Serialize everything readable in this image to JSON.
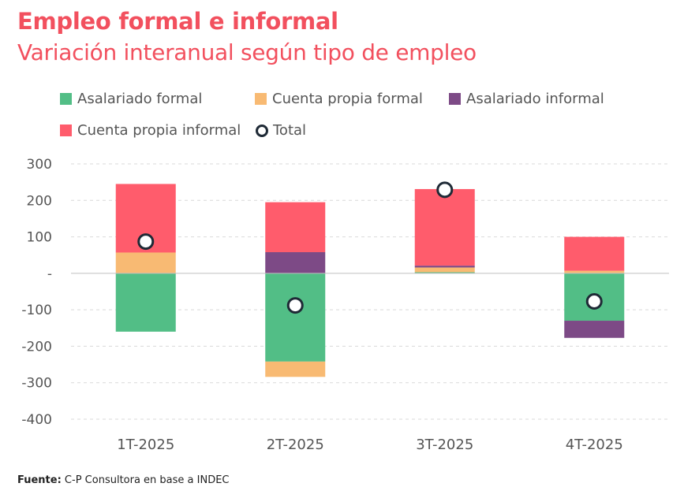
{
  "header": {
    "title": "Empleo formal e informal",
    "subtitle": "Variación interanual según tipo de empleo"
  },
  "legend": [
    {
      "label": "Asalariado formal",
      "color": "#52BE86",
      "kind": "square"
    },
    {
      "label": "Cuenta propia formal",
      "color": "#F8BA73",
      "kind": "square"
    },
    {
      "label": "Asalariado informal",
      "color": "#7D4A86",
      "kind": "square"
    },
    {
      "label": "Cuenta propia informal",
      "color": "#FF5C6C",
      "kind": "square"
    },
    {
      "label": "Total",
      "color": "#1f2a36",
      "kind": "dot"
    }
  ],
  "chart_data": {
    "type": "bar",
    "stacked": true,
    "categories": [
      "1T-2025",
      "2T-2025",
      "3T-2025",
      "4T-2025"
    ],
    "series": [
      {
        "name": "Asalariado formal",
        "color": "#52BE86",
        "values": [
          -160,
          -242,
          3,
          -130
        ]
      },
      {
        "name": "Cuenta propia formal",
        "color": "#F8BA73",
        "values": [
          57,
          -42,
          13,
          7
        ]
      },
      {
        "name": "Asalariado informal",
        "color": "#7D4A86",
        "values": [
          0,
          58,
          5,
          -47
        ]
      },
      {
        "name": "Cuenta propia informal",
        "color": "#FF5C6C",
        "values": [
          188,
          137,
          210,
          93
        ]
      }
    ],
    "total": {
      "name": "Total",
      "values": [
        87,
        -88,
        229,
        -77
      ]
    },
    "ylim": [
      -400,
      300
    ],
    "yticks": [
      300,
      200,
      100,
      0,
      -100,
      -200,
      -300,
      -400
    ],
    "ytick_labels": [
      "300",
      "200",
      "100",
      "-",
      "-100",
      "-200",
      "-300",
      "-400"
    ],
    "grid": true
  },
  "footer": {
    "source_label": "Fuente:",
    "source_text": " C-P Consultora en base a INDEC"
  }
}
